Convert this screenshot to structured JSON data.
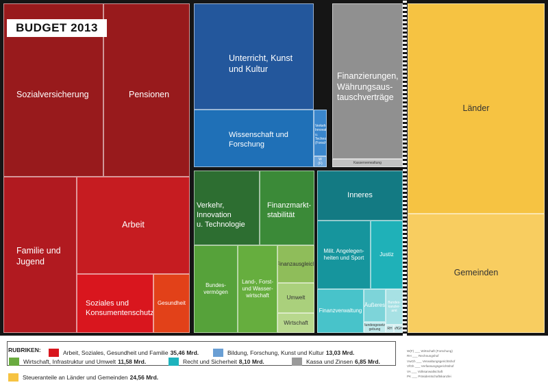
{
  "chart_data": {
    "type": "treemap",
    "title": "BUDGET 2013",
    "unit": "Mrd.",
    "categories": [
      {
        "name": "Arbeit, Soziales, Gesundheit und Familie",
        "value": 35.46,
        "value_label": "35,46 Mrd.",
        "color": "#d9161e"
      },
      {
        "name": "Bildung, Forschung, Kunst und Kultur",
        "value": 13.03,
        "value_label": "13,03 Mrd.",
        "color": "#6a9fd4"
      },
      {
        "name": "Wirtschaft, Infrastruktur und Umwelt",
        "value": 11.58,
        "value_label": "11,58 Mrd.",
        "color": "#6aab3f"
      },
      {
        "name": "Recht und Sicherheit",
        "value": 8.1,
        "value_label": "8,10 Mrd.",
        "color": "#1db3bd"
      },
      {
        "name": "Kassa und Zinsen",
        "value": 6.85,
        "value_label": "6,85 Mrd.",
        "color": "#9a9a9a"
      },
      {
        "name": "Steueranteile an Länder und Gemeinden",
        "value": 24.56,
        "value_label": "24,56 Mrd.",
        "color": "#f6c342"
      }
    ],
    "tiles": [
      {
        "label": "Sozialversicherung",
        "category": 0,
        "color": "#981a1c"
      },
      {
        "label": "Pensionen",
        "category": 0,
        "color": "#981a1c"
      },
      {
        "label": "Familie und\nJugend",
        "category": 0,
        "color": "#b11a20"
      },
      {
        "label": "Arbeit",
        "category": 0,
        "color": "#c61c21"
      },
      {
        "label": "Soziales und\nKonsumentenschutz",
        "category": 0,
        "color": "#d9161e"
      },
      {
        "label": "Gesundheit",
        "category": 0,
        "color": "#e24119"
      },
      {
        "label": "Unterricht, Kunst\nund Kultur",
        "category": 1,
        "color": "#23579c"
      },
      {
        "label": "Wissenschaft und\nForschung",
        "category": 1,
        "color": "#1f70b7"
      },
      {
        "label": "Verkehr, Innovation\nu. Technologie\n(Forschung)",
        "category": 1,
        "color": "#3a86cc"
      },
      {
        "label": "W\n(F)",
        "category": 1,
        "color": "#6da6dc"
      },
      {
        "label": "Finanzierungen,\nWährungsaus-\ntauschverträge",
        "category": 4,
        "color": "#909090"
      },
      {
        "label": "Kassenverwaltung",
        "category": 4,
        "color": "#c2c2c2"
      },
      {
        "label": "Verkehr, Innovation\nu. Technologie",
        "category": 2,
        "color": "#2d6e31"
      },
      {
        "label": "Finanzmarkt-\nstabilität",
        "category": 2,
        "color": "#3b8a38"
      },
      {
        "label": "Bundes-\nvermögen",
        "category": 2,
        "color": "#56a23a"
      },
      {
        "label": "Land-, Forst-\nund Wasser-\nwirtschaft",
        "category": 2,
        "color": "#66ae3e"
      },
      {
        "label": "Finanzausgleich",
        "category": 2,
        "color": "#8fbd5a"
      },
      {
        "label": "Umwelt",
        "category": 2,
        "color": "#aad07c"
      },
      {
        "label": "Wirtschaft",
        "category": 2,
        "color": "#b8d88d"
      },
      {
        "label": "Inneres",
        "category": 3,
        "color": "#137a83"
      },
      {
        "label": "Milit. Angelegen-\nheiten und Sport",
        "category": 3,
        "color": "#16959d"
      },
      {
        "label": "Justiz",
        "category": 3,
        "color": "#1fb1b8"
      },
      {
        "label": "Finanzverwaltung",
        "category": 3,
        "color": "#48c3ca"
      },
      {
        "label": "Äußeres",
        "category": 3,
        "color": "#7dd4d9"
      },
      {
        "label": "Bundes-\nkanzler-\namt",
        "category": 3,
        "color": "#a7e1e4"
      },
      {
        "label": "Bundesgesetz-\ngebung",
        "category": 3,
        "color": "#bfe8ea"
      },
      {
        "label": "RH",
        "category": 3,
        "color": "#cdecee"
      },
      {
        "label": "VfGH",
        "category": 3,
        "color": "#cdecee"
      },
      {
        "label": "Länder",
        "category": 5,
        "color": "#f6c342"
      },
      {
        "label": "Gemeinden",
        "category": 5,
        "color": "#f8cd60"
      }
    ]
  },
  "legend": {
    "heading": "RUBRIKEN:"
  },
  "abbreviations": [
    "W(F) ___ Wirtschaft (Forschung)",
    "RH ___ Rechnungshof",
    "VwGh ___ Verwaltungsgerichtshof",
    "VfGh ___ Verfassungsgerichtshof",
    "VA ___ Volksanwaltschaft",
    "PK ___ Präsidentschaftskanzlei"
  ]
}
